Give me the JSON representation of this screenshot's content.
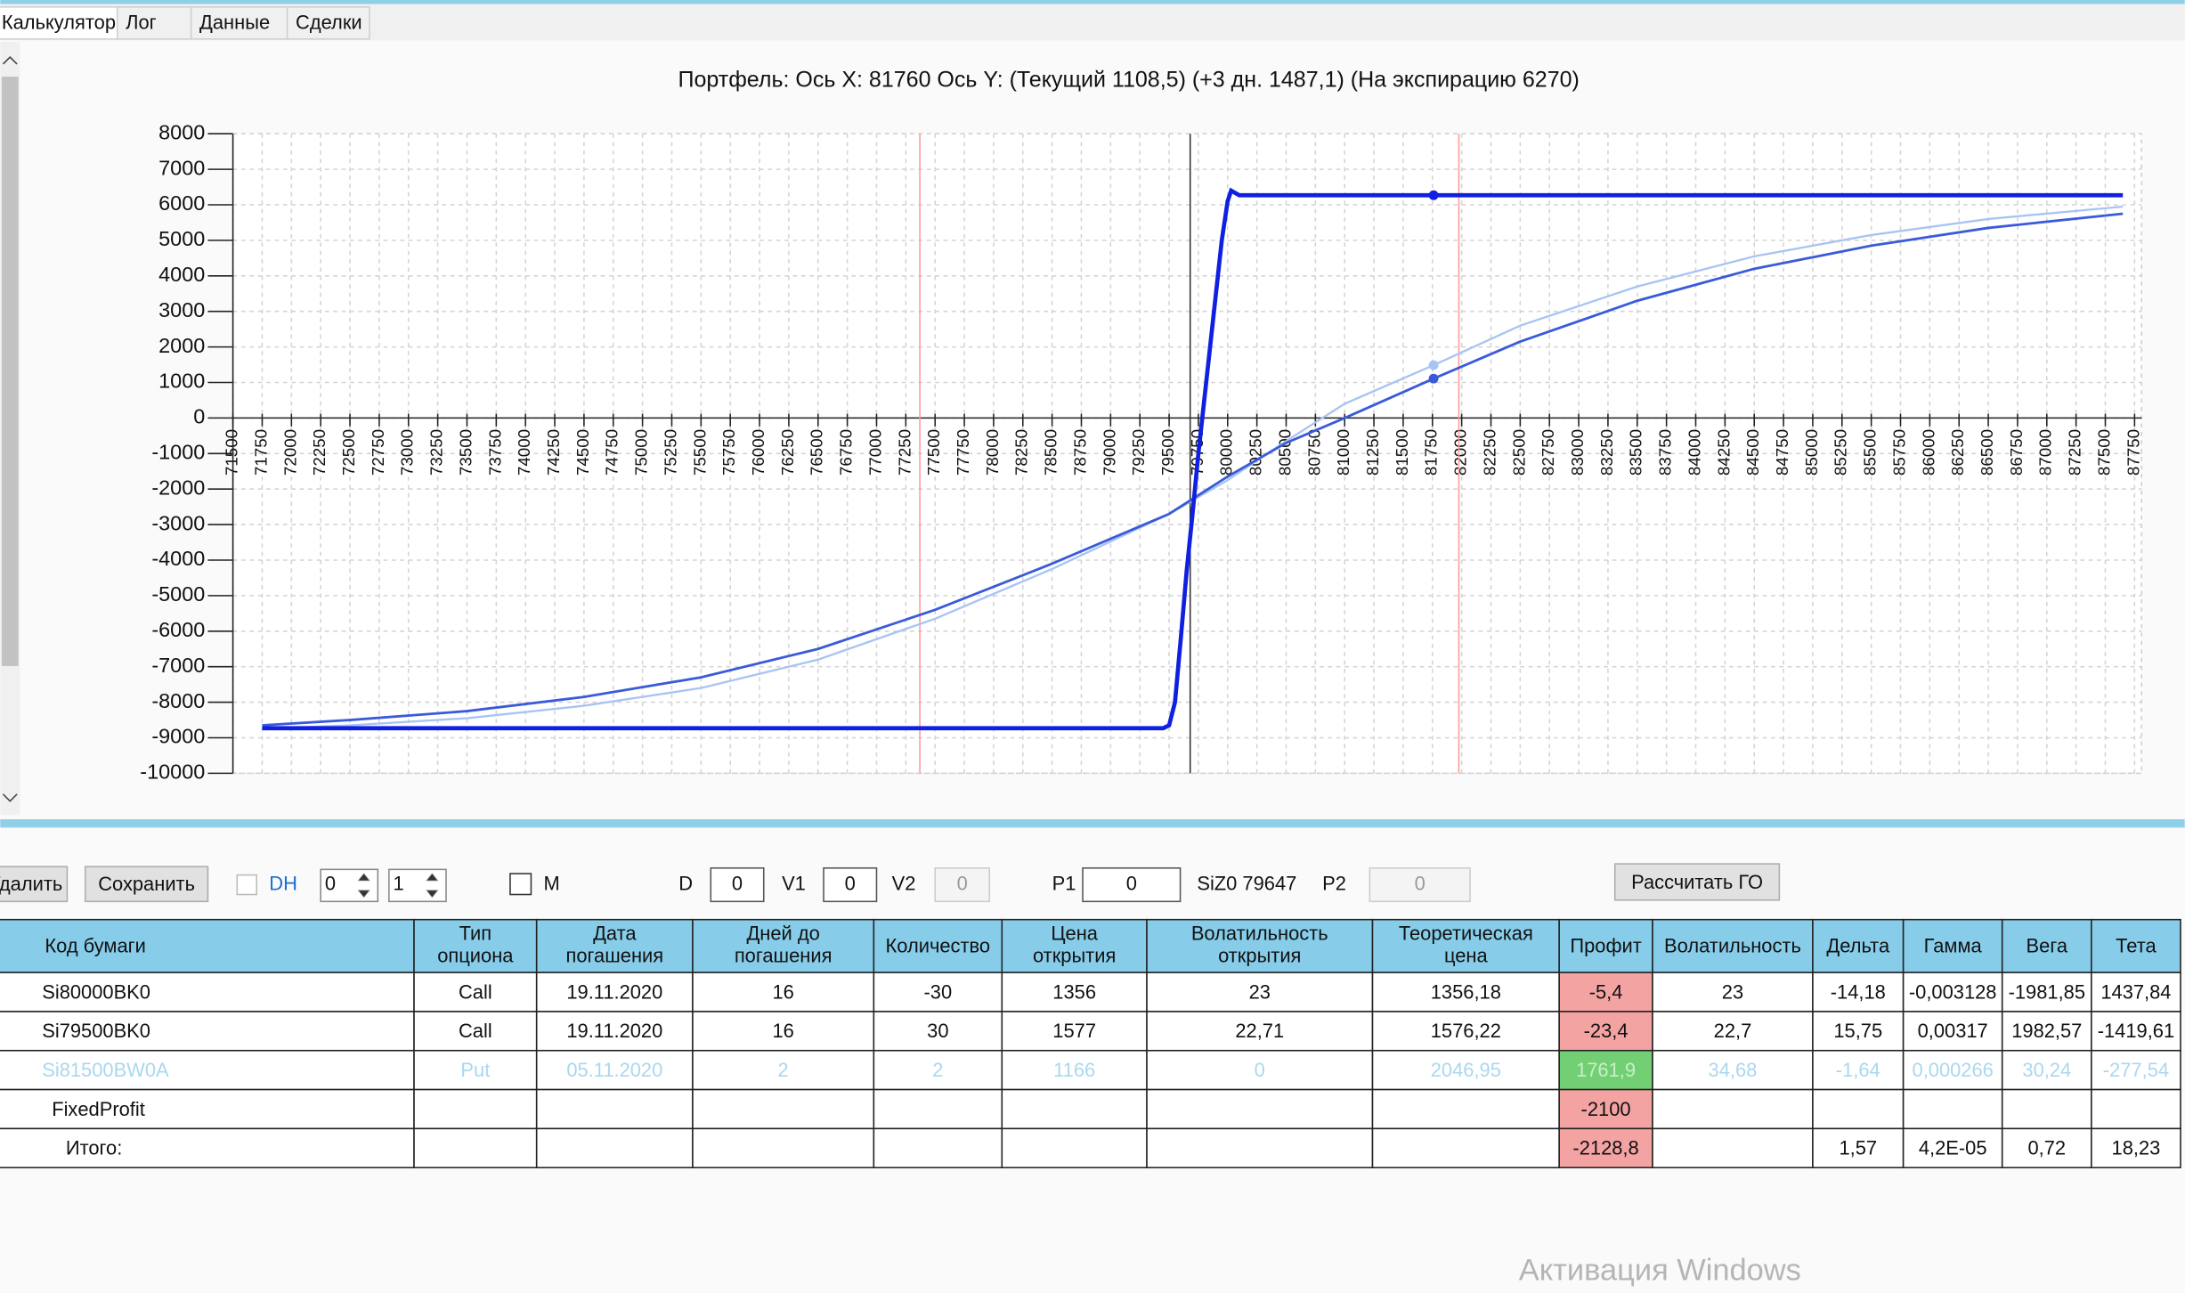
{
  "tabs": [
    "Калькулятор",
    "Лог",
    "Данные",
    "Сделки"
  ],
  "toolbar": {
    "delete": "Удалить",
    "save": "Сохранить",
    "dh": "DH",
    "spin1": "0",
    "spin2": "1",
    "m": "M",
    "d_label": "D",
    "d_value": "0",
    "v1_label": "V1",
    "v1_value": "0",
    "v2_label": "V2",
    "v2_value": "0",
    "p1_label": "P1",
    "p1_value": "0",
    "instrument": "SiZ0 79647",
    "p2_label": "P2",
    "p2_value": "0",
    "calc": "Рассчитать ГО"
  },
  "chart_data": {
    "type": "line",
    "title": "Портфель: Ось X: 81760 Ось Y:  (Текущий 1108,5)  (+3 дн. 1487,1)  (На экспирацию 6270)",
    "xlim": [
      71500,
      87750
    ],
    "ylim": [
      -10000,
      8000
    ],
    "xticks": [
      71500,
      71750,
      72000,
      72250,
      72500,
      72750,
      73000,
      73250,
      73500,
      73750,
      74000,
      74250,
      74500,
      74750,
      75000,
      75250,
      75500,
      75750,
      76000,
      76250,
      76500,
      76750,
      77000,
      77250,
      77500,
      77750,
      78000,
      78250,
      78500,
      78750,
      79000,
      79250,
      79500,
      79750,
      80000,
      80250,
      80500,
      80750,
      81000,
      81250,
      81500,
      81750,
      82000,
      82250,
      82500,
      82750,
      83000,
      83250,
      83500,
      83750,
      84000,
      84250,
      84500,
      84750,
      85000,
      85250,
      85500,
      85750,
      86000,
      86250,
      86500,
      86750,
      87000,
      87250,
      87500,
      87750
    ],
    "yticks": [
      -10000,
      -9000,
      -8000,
      -7000,
      -6000,
      -5000,
      -4000,
      -3000,
      -2000,
      -1000,
      0,
      1000,
      2000,
      3000,
      4000,
      5000,
      6000,
      7000,
      8000
    ],
    "grid": true,
    "cursor_x": 81760,
    "vlines": [
      {
        "value": 77370,
        "color": "#ff9a9a"
      },
      {
        "value": 81976,
        "color": "#ff9a9a"
      },
      {
        "value": 79680,
        "color": "#333333"
      }
    ],
    "series": [
      {
        "color": "#a8c4f4",
        "width": 1.5,
        "x": [
          71750,
          72500,
          73500,
          74500,
          75500,
          76500,
          77500,
          78500,
          79500,
          80000,
          80500,
          81000,
          81760,
          82500,
          83500,
          84500,
          85500,
          86500,
          87650
        ],
        "values": [
          -8750,
          -8650,
          -8450,
          -8100,
          -7600,
          -6800,
          -5650,
          -4250,
          -2700,
          -1750,
          -650,
          400,
          1487.1,
          2600,
          3700,
          4550,
          5150,
          5600,
          5950
        ]
      },
      {
        "color": "#3a5bd9",
        "width": 1.8,
        "x": [
          71750,
          72500,
          73500,
          74500,
          75500,
          76500,
          77500,
          78500,
          79500,
          80000,
          80500,
          81000,
          81760,
          82500,
          83500,
          84500,
          85500,
          86500,
          87650
        ],
        "values": [
          -8650,
          -8500,
          -8250,
          -7850,
          -7300,
          -6500,
          -5400,
          -4100,
          -2700,
          -1650,
          -700,
          0,
          1108.5,
          2150,
          3300,
          4200,
          4850,
          5350,
          5750
        ]
      },
      {
        "color": "#1020e0",
        "width": 3,
        "x": [
          71750,
          79450,
          79500,
          79550,
          79600,
          79650,
          79700,
          79750,
          79800,
          79850,
          79900,
          79950,
          80000,
          80030,
          80100,
          81760,
          87650
        ],
        "values": [
          -8730,
          -8730,
          -8650,
          -8000,
          -6200,
          -4300,
          -2700,
          -1000,
          500,
          2000,
          3500,
          5000,
          6100,
          6400,
          6270,
          6270,
          6270
        ]
      }
    ]
  },
  "table": {
    "headers": [
      [
        "Код бумаги"
      ],
      [
        "Тип",
        "опциона"
      ],
      [
        "Дата",
        "погашения"
      ],
      [
        "Дней до",
        "погашения"
      ],
      [
        "Количество"
      ],
      [
        "Цена",
        "открытия"
      ],
      [
        "Волатильность",
        "открытия"
      ],
      [
        "Теоретическая",
        "цена"
      ],
      [
        "Профит"
      ],
      [
        "Волатильность"
      ],
      [
        "Дельта"
      ],
      [
        "Гамма"
      ],
      [
        "Вега"
      ],
      [
        "Тета"
      ]
    ],
    "rows": [
      [
        "Si80000BK0",
        "Call",
        "19.11.2020",
        "16",
        "-30",
        "1356",
        "23",
        "1356,18",
        "-5,4",
        "23",
        "-14,18",
        "-0,003128",
        "-1981,85",
        "1437,84"
      ],
      [
        "Si79500BK0",
        "Call",
        "19.11.2020",
        "16",
        "30",
        "1577",
        "22,71",
        "1576,22",
        "-23,4",
        "22,7",
        "15,75",
        "0,00317",
        "1982,57",
        "-1419,61"
      ],
      [
        "Si81500BW0A",
        "Put",
        "05.11.2020",
        "2",
        "2",
        "1166",
        "0",
        "2046,95",
        "1761,9",
        "34,68",
        "-1,64",
        "0,000266",
        "30,24",
        "-277,54"
      ],
      [
        "FixedProfit",
        null,
        null,
        null,
        null,
        null,
        null,
        null,
        "-2100",
        null,
        null,
        null,
        null,
        null
      ],
      [
        "Итого:",
        null,
        null,
        null,
        null,
        null,
        null,
        null,
        "-2128,8",
        null,
        "1,57",
        "4,2E-05",
        "0,72",
        "18,23"
      ]
    ]
  },
  "watermark": "Активация Windows"
}
